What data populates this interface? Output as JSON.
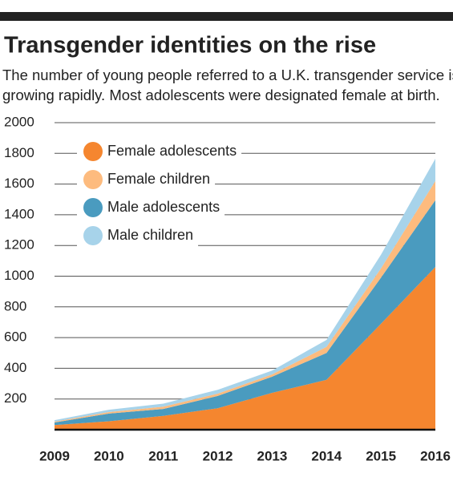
{
  "chart_data": {
    "type": "stacked_area",
    "title": "Transgender identities on the rise",
    "subtitle": [
      "The number of young people referred to a U.K. transgender service is",
      "growing rapidly. Most adolescents were designated female at birth."
    ],
    "categories": [
      "2009",
      "2010",
      "2011",
      "2012",
      "2013",
      "2014",
      "2015",
      "2016"
    ],
    "series": [
      {
        "name": "Female adolescents",
        "color": "#f5862f",
        "values": [
          30,
          55,
          90,
          140,
          240,
          325,
          690,
          1060
        ]
      },
      {
        "name": "Female children",
        "color": "#fdbb7e",
        "values": [
          5,
          10,
          15,
          15,
          15,
          40,
          60,
          125
        ]
      },
      {
        "name": "Male adolescents",
        "color": "#4a9bbf",
        "values": [
          17,
          50,
          45,
          80,
          105,
          175,
          300,
          435
        ]
      },
      {
        "name": "Male children",
        "color": "#a7d3ea",
        "values": [
          10,
          15,
          20,
          25,
          25,
          45,
          90,
          145
        ]
      }
    ],
    "ylim": [
      0,
      2000
    ],
    "yticks": [
      200,
      400,
      600,
      800,
      1000,
      1200,
      1400,
      1600,
      1800,
      2000
    ],
    "grid": true
  }
}
